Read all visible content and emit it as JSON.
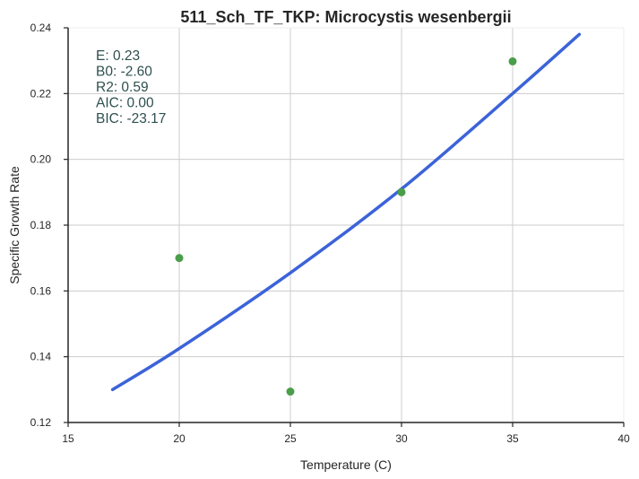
{
  "chart_data": {
    "type": "scatter",
    "title": "511_Sch_TF_TKP: Microcystis wesenbergii",
    "xlabel": "Temperature (C)",
    "ylabel": "Specific Growth Rate",
    "xlim": [
      15,
      40
    ],
    "ylim": [
      0.12,
      0.24
    ],
    "x_ticks": [
      15,
      20,
      25,
      30,
      35,
      40
    ],
    "y_ticks": [
      0.12,
      0.14,
      0.16,
      0.18,
      0.2,
      0.22,
      0.24
    ],
    "x_tick_labels": [
      "15",
      "20",
      "25",
      "30",
      "35",
      "40"
    ],
    "y_tick_labels": [
      "0.12",
      "0.14",
      "0.16",
      "0.18",
      "0.20",
      "0.22",
      "0.24"
    ],
    "grid": true,
    "points": {
      "x": [
        20,
        25,
        30,
        35
      ],
      "y": [
        0.17,
        0.1294,
        0.19,
        0.2298
      ],
      "color": "#4a9e4a"
    },
    "fit_line": {
      "x": [
        17,
        20,
        25,
        30,
        35,
        38
      ],
      "y": [
        0.13,
        0.1425,
        0.1655,
        0.191,
        0.22,
        0.238
      ],
      "color": "#3c63d8"
    },
    "annotations": [
      {
        "label": "E:  0.23"
      },
      {
        "label": "B0:  -2.60"
      },
      {
        "label": "R2:  0.59"
      },
      {
        "label": "AIC: 0.00"
      },
      {
        "label": "BIC: -23.17"
      }
    ],
    "annotation_color": "#2f4f4f"
  }
}
